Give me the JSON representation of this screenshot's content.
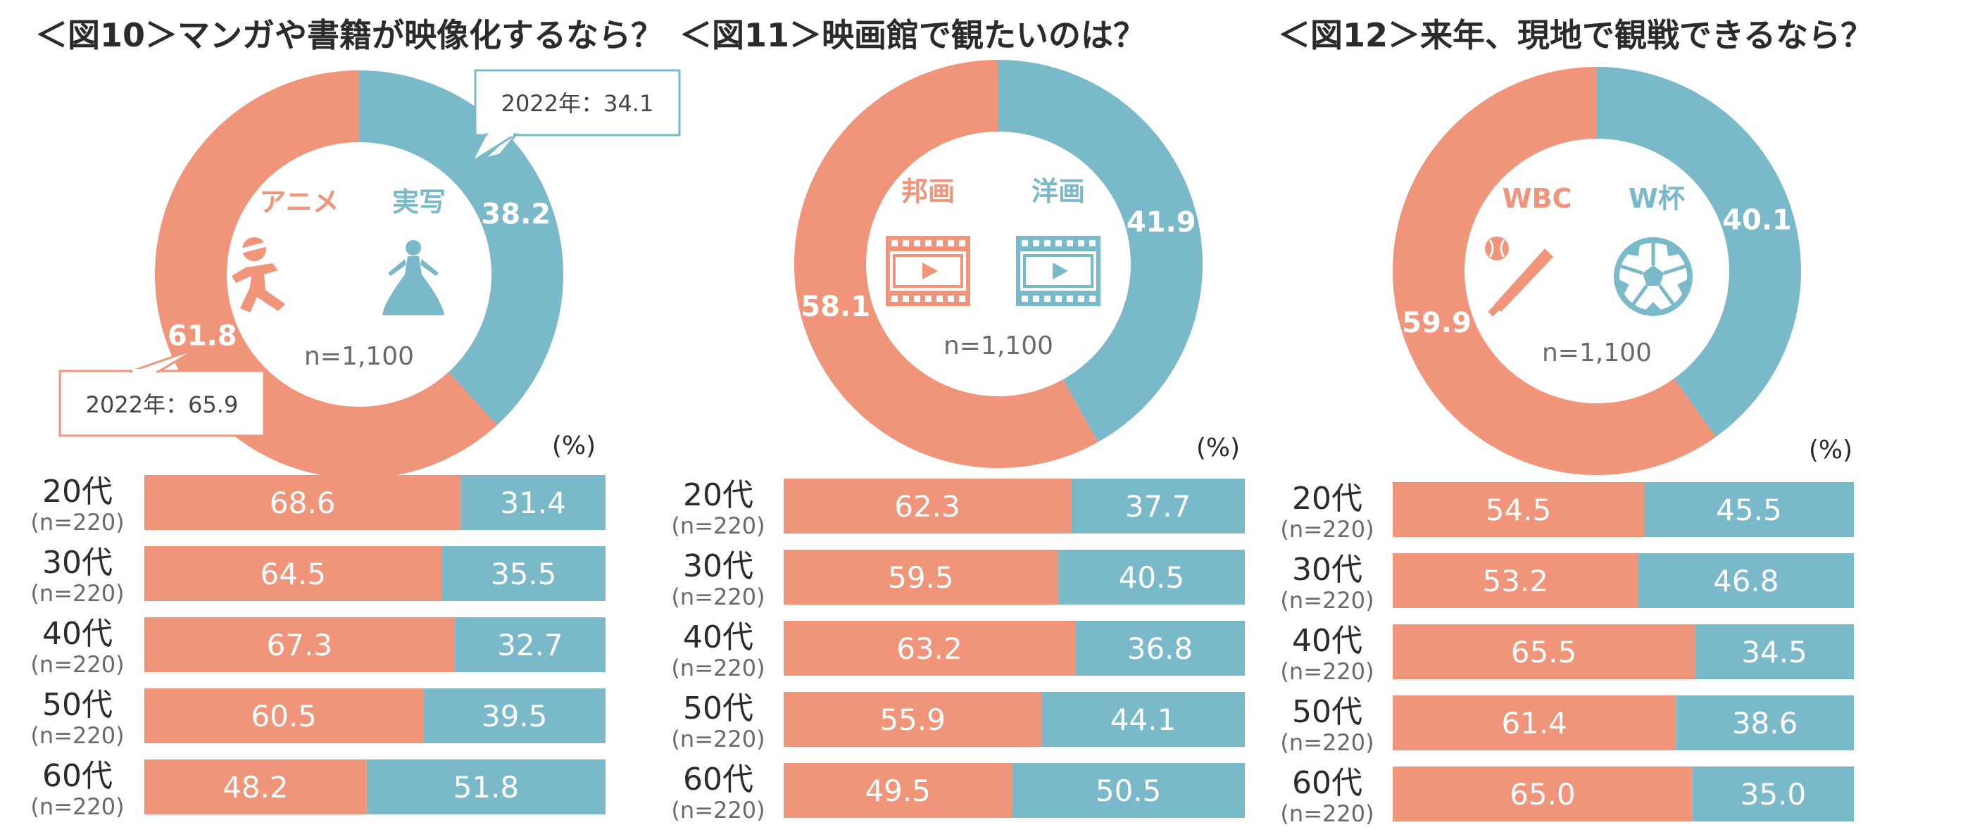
{
  "colors": {
    "orange": "#f0957a",
    "blue": "#7ab9c9",
    "callout_border_orange": "#f0957a",
    "callout_border_blue": "#7ab9c9"
  },
  "chart_data": [
    {
      "type": "donut+stacked-bar",
      "title": "＜図10＞マンガや書籍が映像化するなら？",
      "donut": {
        "slices": [
          {
            "name": "アニメ",
            "value": 61.8,
            "label": "61.8"
          },
          {
            "name": "実写",
            "value": 38.2,
            "label": "38.2"
          }
        ],
        "n_label": "n=1,100",
        "icons": [
          "anime-character-icon",
          "live-action-princess-icon"
        ],
        "callouts": [
          {
            "series": "実写",
            "text": "2022年：34.1"
          },
          {
            "series": "アニメ",
            "text": "2022年：65.9"
          }
        ]
      },
      "unit": "(%)",
      "rows": [
        {
          "label": "20代",
          "n": "(n=220)",
          "values": [
            68.6,
            31.4
          ],
          "texts": [
            "68.6",
            "31.4"
          ]
        },
        {
          "label": "30代",
          "n": "(n=220)",
          "values": [
            64.5,
            35.5
          ],
          "texts": [
            "64.5",
            "35.5"
          ]
        },
        {
          "label": "40代",
          "n": "(n=220)",
          "values": [
            67.3,
            32.7
          ],
          "texts": [
            "67.3",
            "32.7"
          ]
        },
        {
          "label": "50代",
          "n": "(n=220)",
          "values": [
            60.5,
            39.5
          ],
          "texts": [
            "60.5",
            "39.5"
          ]
        },
        {
          "label": "60代",
          "n": "(n=220)",
          "values": [
            48.2,
            51.8
          ],
          "texts": [
            "48.2",
            "51.8"
          ]
        }
      ]
    },
    {
      "type": "donut+stacked-bar",
      "title": "＜図11＞映画館で観たいのは？",
      "donut": {
        "slices": [
          {
            "name": "邦画",
            "value": 58.1,
            "label": "58.1"
          },
          {
            "name": "洋画",
            "value": 41.9,
            "label": "41.9"
          }
        ],
        "n_label": "n=1,100",
        "icons": [
          "film-play-icon",
          "film-play-icon"
        ],
        "callouts": []
      },
      "unit": "(%)",
      "rows": [
        {
          "label": "20代",
          "n": "(n=220)",
          "values": [
            62.3,
            37.7
          ],
          "texts": [
            "62.3",
            "37.7"
          ]
        },
        {
          "label": "30代",
          "n": "(n=220)",
          "values": [
            59.5,
            40.5
          ],
          "texts": [
            "59.5",
            "40.5"
          ]
        },
        {
          "label": "40代",
          "n": "(n=220)",
          "values": [
            63.2,
            36.8
          ],
          "texts": [
            "63.2",
            "36.8"
          ]
        },
        {
          "label": "50代",
          "n": "(n=220)",
          "values": [
            55.9,
            44.1
          ],
          "texts": [
            "55.9",
            "44.1"
          ]
        },
        {
          "label": "60代",
          "n": "(n=220)",
          "values": [
            49.5,
            50.5
          ],
          "texts": [
            "49.5",
            "50.5"
          ]
        }
      ]
    },
    {
      "type": "donut+stacked-bar",
      "title": "＜図12＞来年、現地で観戦できるなら？",
      "donut": {
        "slices": [
          {
            "name": "WBC",
            "value": 59.9,
            "label": "59.9"
          },
          {
            "name": "W杯",
            "value": 40.1,
            "label": "40.1"
          }
        ],
        "n_label": "n=1,100",
        "icons": [
          "baseball-bat-icon",
          "soccer-ball-icon"
        ],
        "callouts": []
      },
      "unit": "(%)",
      "rows": [
        {
          "label": "20代",
          "n": "(n=220)",
          "values": [
            54.5,
            45.5
          ],
          "texts": [
            "54.5",
            "45.5"
          ]
        },
        {
          "label": "30代",
          "n": "(n=220)",
          "values": [
            53.2,
            46.8
          ],
          "texts": [
            "53.2",
            "46.8"
          ]
        },
        {
          "label": "40代",
          "n": "(n=220)",
          "values": [
            65.5,
            34.5
          ],
          "texts": [
            "65.5",
            "34.5"
          ]
        },
        {
          "label": "50代",
          "n": "(n=220)",
          "values": [
            61.4,
            38.6
          ],
          "texts": [
            "61.4",
            "38.6"
          ]
        },
        {
          "label": "60代",
          "n": "(n=220)",
          "values": [
            65.0,
            35.0
          ],
          "texts": [
            "65.0",
            "35.0"
          ]
        }
      ]
    }
  ]
}
